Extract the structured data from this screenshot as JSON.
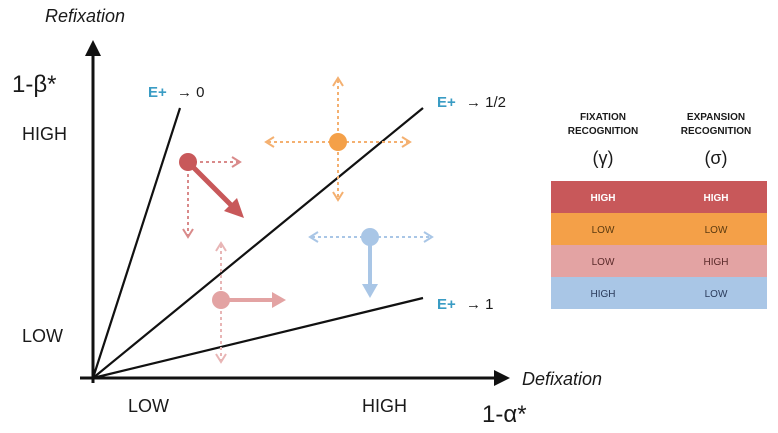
{
  "axes": {
    "y_title": "Refixation",
    "y_symbol": "1-β*",
    "y_high": "HIGH",
    "y_low": "LOW",
    "x_title": "Defixation",
    "x_symbol": "1-α*",
    "x_low": "LOW",
    "x_high": "HIGH"
  },
  "lines": [
    {
      "prefix": "E+",
      "limit": "→ 0"
    },
    {
      "prefix": "E+",
      "limit": "→ 1/2"
    },
    {
      "prefix": "E+",
      "limit": "→ 1"
    }
  ],
  "legend": {
    "col1_title_1": "FIXATION",
    "col1_title_2": "RECOGNITION",
    "col1_symbol": "(γ)",
    "col2_title_1": "EXPANSION",
    "col2_title_2": "RECOGNITION",
    "col2_symbol": "(σ)",
    "rows": [
      {
        "color": "#c8585a",
        "text_color": "#ffffff",
        "fixation": "HIGH",
        "expansion": "HIGH"
      },
      {
        "color": "#f4a048",
        "text_color": "#5a3a10",
        "fixation": "LOW",
        "expansion": "LOW"
      },
      {
        "color": "#e3a3a3",
        "text_color": "#5a2a2a",
        "fixation": "LOW",
        "expansion": "HIGH"
      },
      {
        "color": "#a9c6e6",
        "text_color": "#2a3a5a",
        "fixation": "HIGH",
        "expansion": "LOW"
      }
    ]
  },
  "markers": [
    {
      "color": "#c8585a",
      "light": "#d98a8a"
    },
    {
      "color": "#f4a048",
      "light": "#f4b070"
    },
    {
      "color": "#e3a3a3",
      "light": "#e8b5b5"
    },
    {
      "color": "#a9c6e6",
      "light": "#a9c6e6"
    }
  ]
}
